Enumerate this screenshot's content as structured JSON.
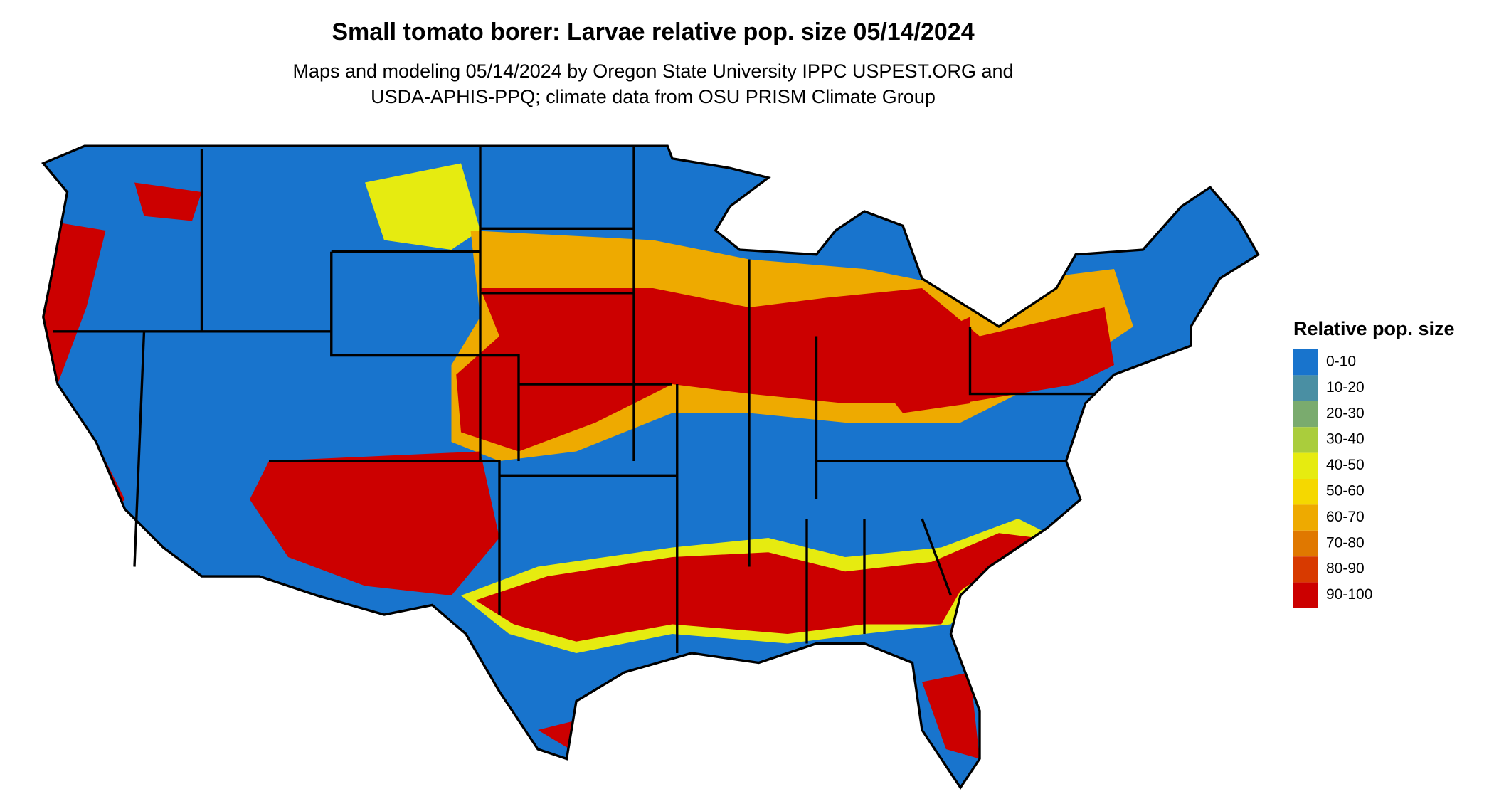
{
  "header": {
    "title": "Small tomato borer: Larvae relative pop. size 05/14/2024",
    "subtitle_lines": [
      "Maps and modeling 05/14/2024 by Oregon State University IPPC USPEST.ORG and",
      "USDA-APHIS-PPQ; climate data from OSU PRISM Climate Group"
    ]
  },
  "legend": {
    "title": "Relative pop. size",
    "items": [
      {
        "label": "0-10",
        "color": "#1874cd"
      },
      {
        "label": "10-20",
        "color": "#4a8fa3"
      },
      {
        "label": "20-30",
        "color": "#7aab6e"
      },
      {
        "label": "30-40",
        "color": "#aacd3c"
      },
      {
        "label": "40-50",
        "color": "#e6eb10"
      },
      {
        "label": "50-60",
        "color": "#f5d800"
      },
      {
        "label": "60-70",
        "color": "#eeaa00"
      },
      {
        "label": "70-80",
        "color": "#e07800"
      },
      {
        "label": "80-90",
        "color": "#d83a00"
      },
      {
        "label": "90-100",
        "color": "#cc0000"
      }
    ]
  }
}
